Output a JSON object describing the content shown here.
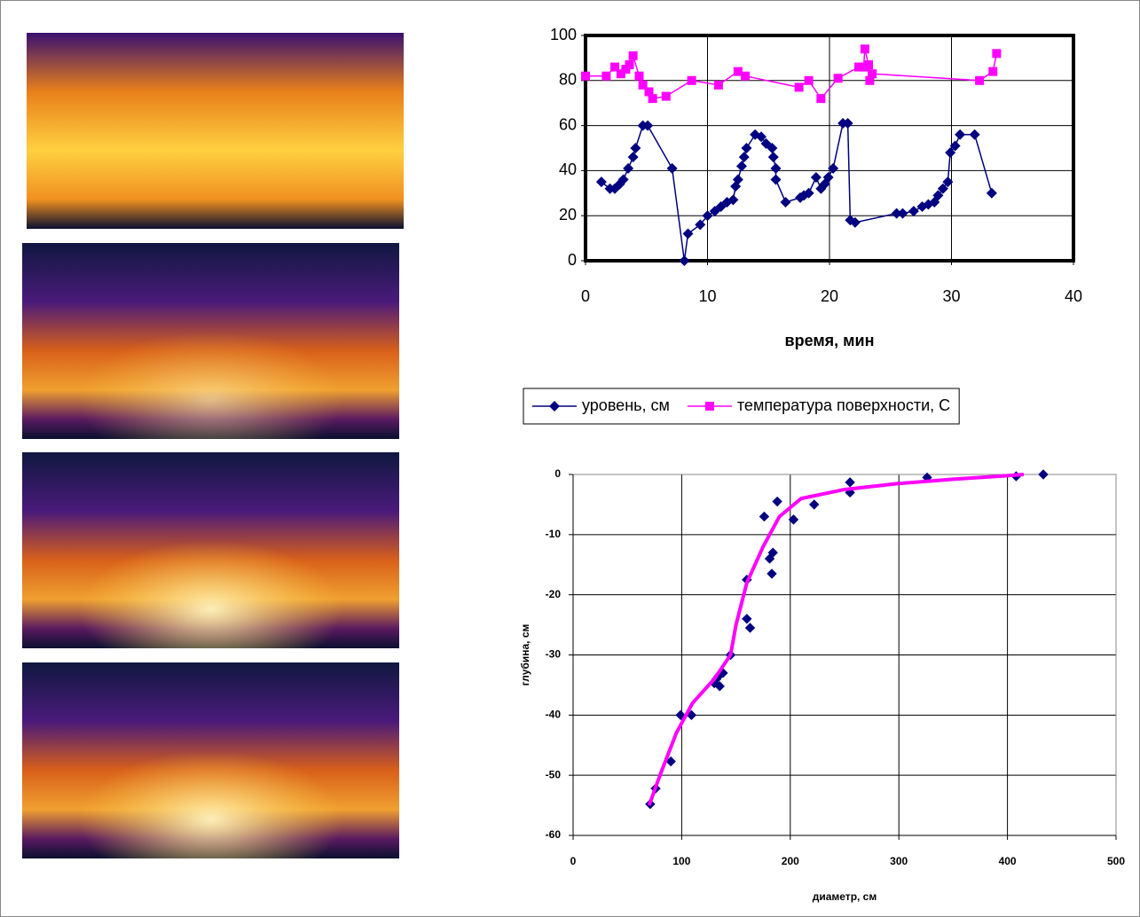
{
  "chart_data": [
    {
      "type": "line",
      "xlabel": "время, мин",
      "xlim": [
        0,
        40
      ],
      "xticks": [
        0,
        10,
        20,
        30,
        40
      ],
      "ylim": [
        0,
        100
      ],
      "yticks": [
        0,
        20,
        40,
        60,
        80,
        100
      ],
      "grid": true,
      "legend": "bottom",
      "series": [
        {
          "name": "уровень, см",
          "color": "#000080",
          "marker": "diamond",
          "x": [
            1.3,
            2.0,
            2.4,
            2.8,
            3.1,
            3.5,
            3.9,
            4.1,
            4.7,
            5.1,
            7.1,
            8.1,
            8.4,
            9.4,
            10.0,
            10.6,
            11.1,
            11.6,
            12.1,
            12.3,
            12.5,
            12.8,
            13.0,
            13.2,
            13.9,
            14.4,
            14.8,
            15.3,
            15.4,
            15.6,
            15.6,
            16.4,
            17.6,
            17.9,
            18.3,
            18.9,
            19.3,
            19.6,
            19.9,
            20.3,
            21.1,
            21.5,
            21.7,
            22.1,
            25.5,
            26.0,
            26.9,
            27.6,
            28.1,
            28.6,
            28.9,
            29.3,
            29.7,
            29.9,
            30.3,
            30.7,
            31.9,
            33.3
          ],
          "values": [
            35,
            32,
            32,
            34,
            36,
            41,
            46,
            50,
            60,
            60,
            41,
            0,
            12,
            16,
            20,
            22,
            24,
            26,
            27,
            33,
            36,
            42,
            46,
            50,
            56,
            55,
            52,
            50,
            46,
            41,
            36,
            26,
            28,
            29,
            30,
            37,
            32,
            34,
            37,
            41,
            61,
            61,
            18,
            17,
            21,
            21,
            22,
            24,
            25,
            26,
            29,
            32,
            35,
            48,
            51,
            56,
            56,
            30
          ]
        },
        {
          "name": "температура поверхности, С",
          "color": "#ff00ff",
          "marker": "square",
          "x": [
            0,
            1.7,
            2.4,
            2.9,
            3.3,
            3.6,
            3.9,
            4.4,
            4.7,
            5.2,
            5.5,
            6.6,
            8.7,
            10.9,
            12.5,
            13.1,
            17.5,
            18.3,
            19.3,
            20.7,
            22.4,
            22.8,
            22.9,
            23.2,
            23.3,
            23.5,
            32.3,
            33.4,
            33.7
          ],
          "values": [
            82,
            82,
            86,
            83,
            85,
            87,
            91,
            82,
            78,
            75,
            72,
            73,
            80,
            78,
            84,
            82,
            77,
            80,
            72,
            81,
            86,
            86,
            94,
            87,
            80,
            83,
            80,
            84,
            92
          ]
        }
      ]
    },
    {
      "type": "scatter",
      "xlabel": "диаметр, см",
      "ylabel": "глубина, см",
      "xlim": [
        0,
        500
      ],
      "xticks": [
        0,
        100,
        200,
        300,
        400,
        500
      ],
      "ylim": [
        -60,
        0
      ],
      "yticks": [
        0,
        -10,
        -20,
        -30,
        -40,
        -50,
        -60
      ],
      "grid": true,
      "series": [
        {
          "color": "#000080",
          "marker": "diamond",
          "x": [
            433,
            408,
            326,
            255,
            255,
            222,
            203,
            188,
            176,
            181,
            184,
            183,
            160,
            160,
            163,
            145,
            138,
            134,
            132,
            130,
            135,
            109,
            99,
            90,
            76,
            71
          ],
          "values": [
            0,
            -0.3,
            -0.5,
            -1.3,
            -3,
            -5,
            -7.5,
            -4.5,
            -7,
            -14,
            -13,
            -16.5,
            -17.5,
            -24,
            -25.5,
            -30,
            -33,
            -33.5,
            -34,
            -34.7,
            -35.2,
            -40,
            -40,
            -47.7,
            -52.2,
            -54.8
          ]
        },
        {
          "color": "#ff00ff",
          "line": true,
          "x": [
            70,
            80,
            95,
            110,
            130,
            145,
            150,
            160,
            175,
            190,
            210,
            250,
            300,
            350,
            400,
            415
          ],
          "values": [
            -55,
            -50,
            -43,
            -38,
            -34,
            -30,
            -25,
            -18,
            -12,
            -7,
            -4,
            -2.5,
            -1.5,
            -0.8,
            -0.2,
            0
          ]
        }
      ]
    }
  ]
}
